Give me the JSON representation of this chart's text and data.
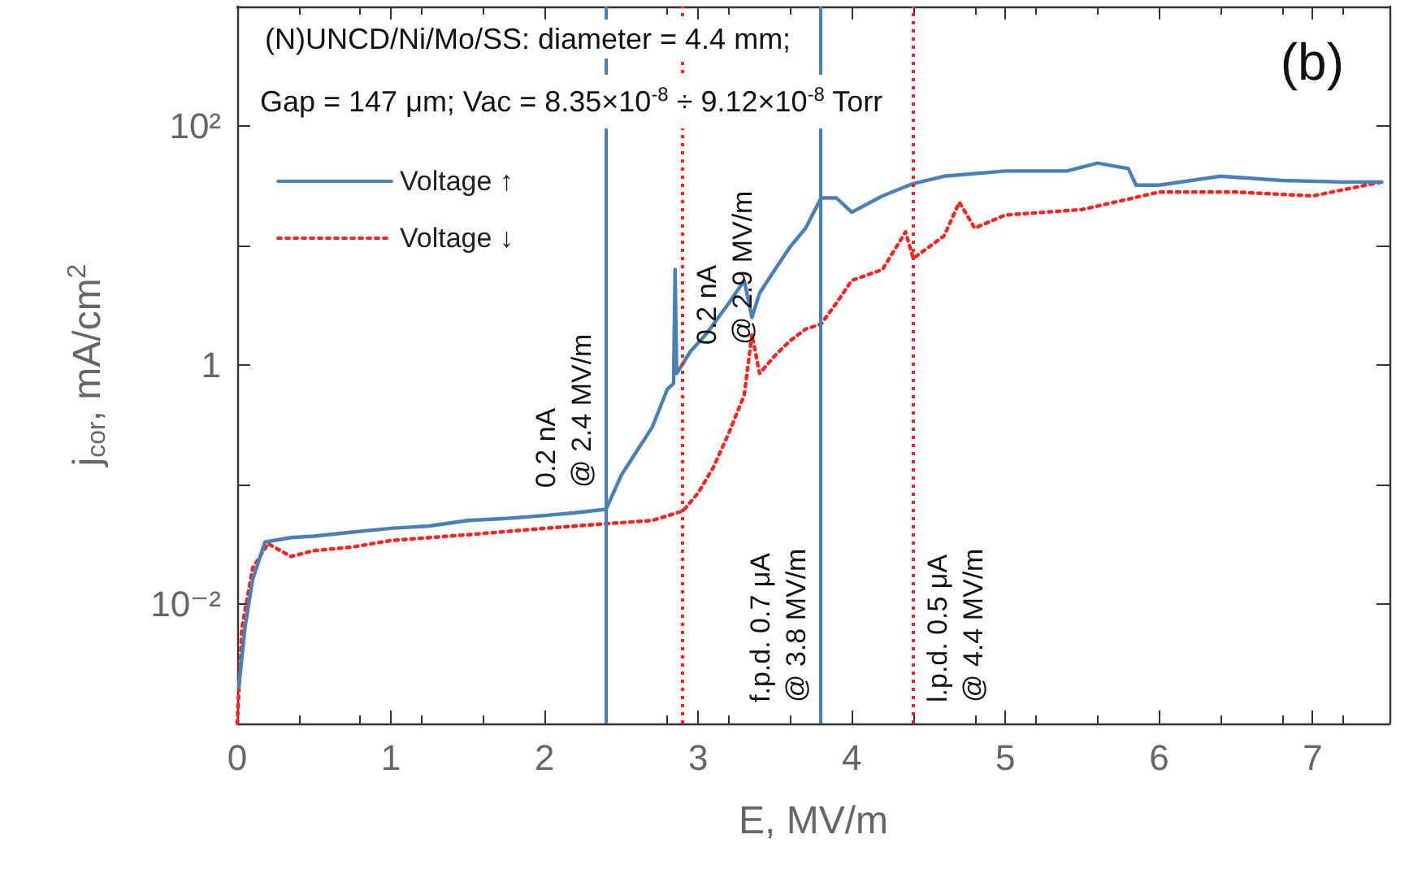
{
  "chart_data": {
    "type": "line",
    "title": "(N)UNCD/Ni/Mo/SS: diameter = 4.4 mm;",
    "subtitle": "Gap = 147 μm; Vac = 8.35×10$^{-8}$ ÷ 9.12×10$^{-8}$ Torr",
    "annotations": [
      "(b)"
    ],
    "xlabel": "E, MV/m",
    "ylabel": "j$_{cor}$, mA/cm$^{2}$",
    "log": "y",
    "xlim": [
      0,
      7.5
    ],
    "xticks": [
      0,
      1,
      2,
      3,
      4,
      5,
      6,
      7
    ],
    "ylim": [
      0.001,
      1000
    ],
    "yticks": [
      {
        "value": 0.01,
        "label": "10⁻²"
      },
      {
        "value": 0.1,
        "label": null
      },
      1,
      {
        "value": 10,
        "label": null
      },
      {
        "value": 100,
        "label": "10²"
      }
    ],
    "grid": false,
    "legend": "top left",
    "marker": "none",
    "series": [
      {
        "name": "Voltage ↑",
        "color": "#4a80b8",
        "line_style": "solid",
        "x": [
          0.01,
          0.05,
          0.1,
          0.18,
          0.35,
          0.5,
          0.75,
          1,
          1.25,
          1.5,
          1.75,
          2,
          2.2,
          2.4,
          2.5,
          2.6,
          2.7,
          2.8,
          2.84,
          2.85,
          2.86,
          2.95,
          3.05,
          3.1,
          3.2,
          3.3,
          3.35,
          3.4,
          3.5,
          3.6,
          3.7,
          3.8,
          3.9,
          4.0,
          4.2,
          4.4,
          4.6,
          5.0,
          5.4,
          5.6,
          5.8,
          5.85,
          6.0,
          6.4,
          6.8,
          7.2,
          7.45
        ],
        "values": [
          0.002,
          0.0063,
          0.016,
          0.033,
          0.036,
          0.037,
          0.04,
          0.043,
          0.045,
          0.05,
          0.052,
          0.055,
          0.058,
          0.062,
          0.12,
          0.19,
          0.3,
          0.63,
          0.7,
          6.3,
          0.85,
          1.3,
          1.8,
          2.2,
          3.3,
          5.1,
          2.5,
          4,
          6.3,
          9.8,
          14,
          25,
          25,
          19,
          26,
          33,
          38,
          42,
          42,
          49,
          44,
          32,
          32,
          38,
          35,
          34,
          34
        ]
      },
      {
        "name": "Voltage ↓",
        "color": "#ff2020",
        "line_style": "dotted",
        "x": [
          0.0,
          0.03,
          0.1,
          0.2,
          0.35,
          0.5,
          0.75,
          1.0,
          1.5,
          2.0,
          2.4,
          2.7,
          2.9,
          3.0,
          3.1,
          3.2,
          3.3,
          3.35,
          3.4,
          3.5,
          3.6,
          3.7,
          3.8,
          3.9,
          4.0,
          4.2,
          4.35,
          4.4,
          4.6,
          4.7,
          4.8,
          5.0,
          5.5,
          6.0,
          6.5,
          7.0,
          7.45
        ],
        "values": [
          0.001,
          0.0063,
          0.02,
          0.032,
          0.025,
          0.028,
          0.03,
          0.034,
          0.038,
          0.043,
          0.047,
          0.05,
          0.06,
          0.085,
          0.14,
          0.27,
          0.56,
          1.8,
          0.85,
          1.2,
          1.6,
          2,
          2.2,
          3.3,
          5.1,
          6.3,
          13,
          7.8,
          12,
          23,
          14,
          18,
          20,
          28,
          28,
          26,
          34
        ]
      }
    ],
    "ref_lines": [
      {
        "axis": "x",
        "value": 2.4,
        "label": "0.2 nA\n@ 2.4 MV/m",
        "color": "#4a80b8",
        "line_style": "solid"
      },
      {
        "axis": "x",
        "value": 2.9,
        "label": "0.2 nA\n@ 2.9 MV/m",
        "color": "#ff2020",
        "line_style": "dotted"
      },
      {
        "axis": "x",
        "value": 3.8,
        "label": "f.p.d. 0.7 μA\n@ 3.8 MV/m",
        "color": "#4a80b8",
        "line_style": "solid"
      },
      {
        "axis": "x",
        "value": 4.4,
        "label": "l.p.d. 0.5 μA\n@ 4.4 MV/m",
        "color": "#ff2020",
        "line_style": "dotted"
      }
    ]
  }
}
